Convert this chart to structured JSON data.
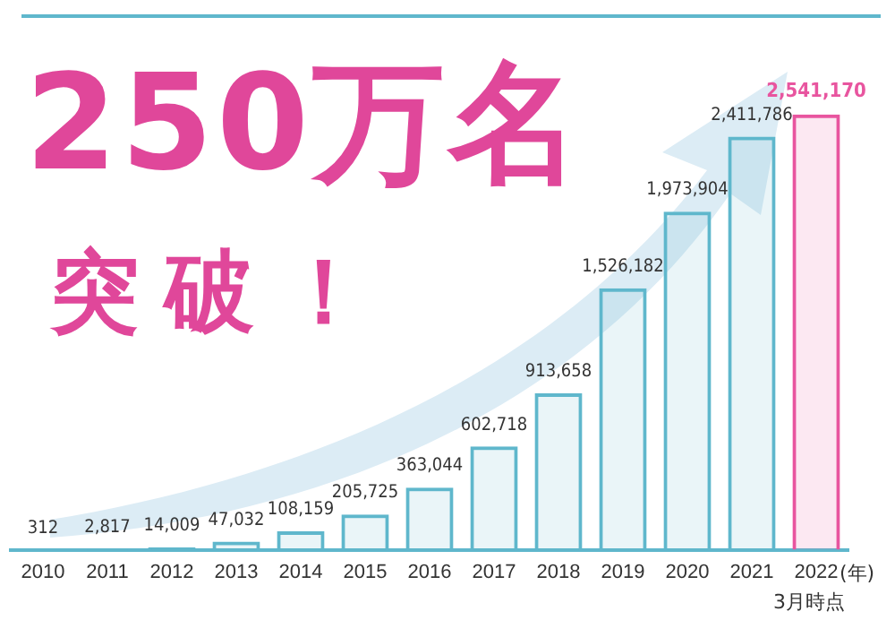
{
  "chart_data": {
    "type": "bar",
    "categories": [
      "2010",
      "2011",
      "2012",
      "2013",
      "2014",
      "2015",
      "2016",
      "2017",
      "2018",
      "2019",
      "2020",
      "2021",
      "2022"
    ],
    "values": [
      312,
      2817,
      14009,
      47032,
      108159,
      205725,
      363044,
      602718,
      913658,
      1526182,
      1973904,
      2411786,
      2541170
    ],
    "value_labels": [
      "312",
      "2,817",
      "14,009",
      "47,032",
      "108,159",
      "205,725",
      "363,044",
      "602,718",
      "913,658",
      "1,526,182",
      "1,973,904",
      "2,411,786",
      "2,541,170"
    ],
    "colors": [
      "#5fb7cc",
      "#5fb7cc",
      "#5fb7cc",
      "#5fb7cc",
      "#5fb7cc",
      "#5fb7cc",
      "#5fb7cc",
      "#5fb7cc",
      "#5fb7cc",
      "#5fb7cc",
      "#5fb7cc",
      "#5fb7cc",
      "#e8559f"
    ],
    "xlabel": "(年)",
    "annotations": [
      "250万名",
      "突破！",
      "3月時点"
    ],
    "grid": false,
    "legend": false
  }
}
